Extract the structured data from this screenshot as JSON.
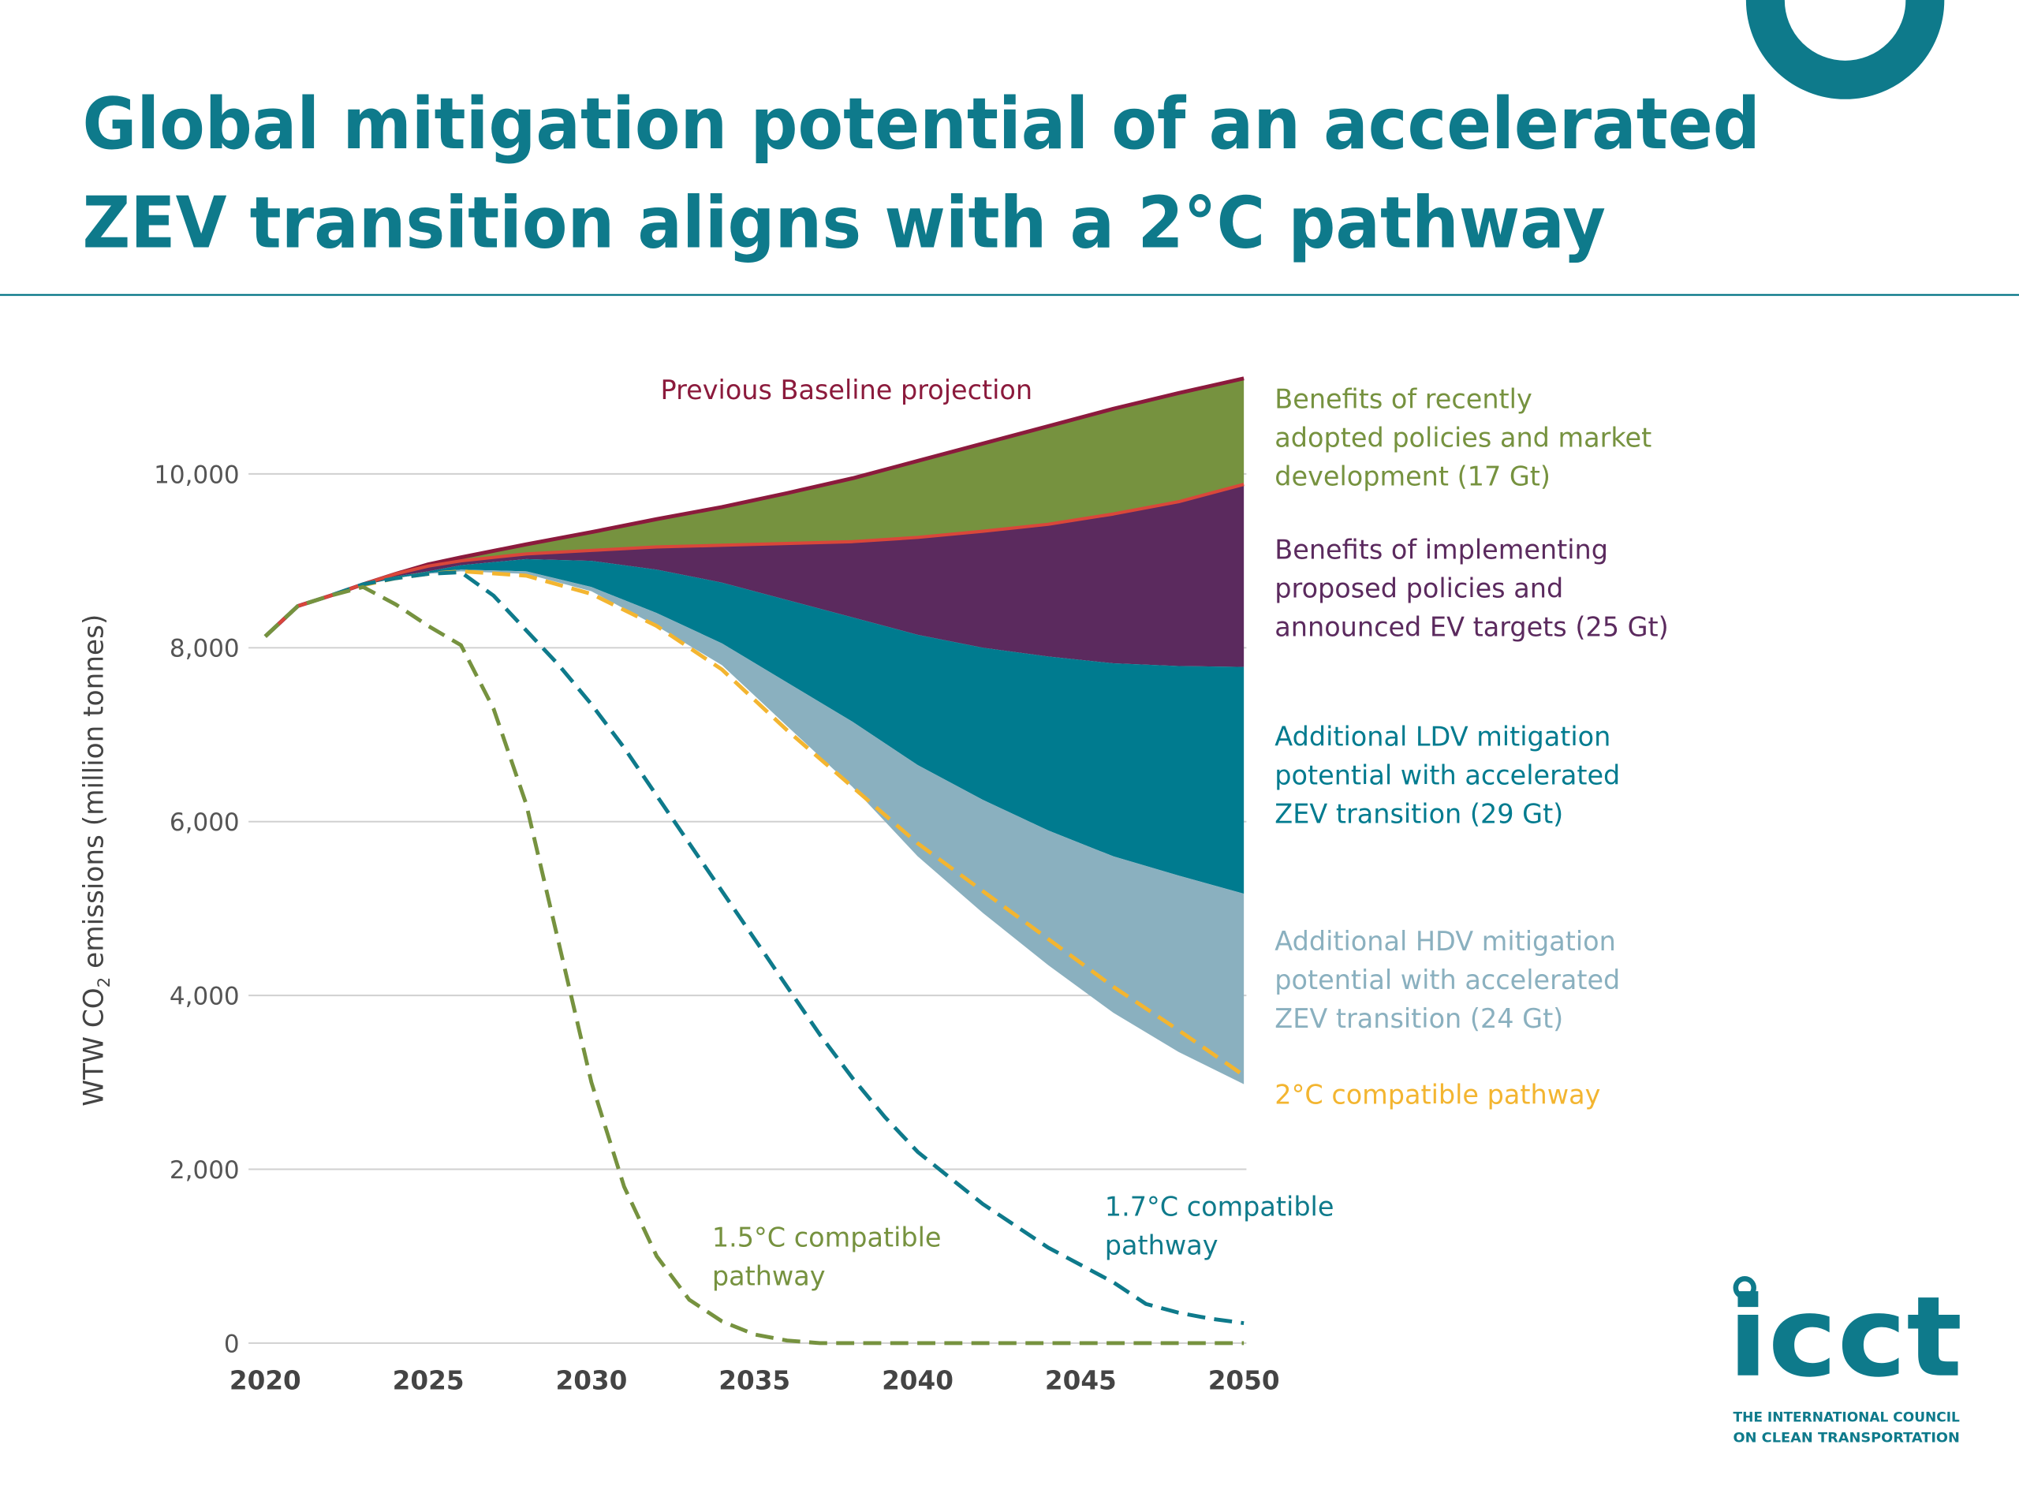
{
  "title_lines": [
    "Global mitigation potential of an accelerated",
    "ZEV transition aligns with a 2°C pathway"
  ],
  "logo": {
    "name": "icct",
    "line1": "THE INTERNATIONAL COUNCIL",
    "line2": "ON CLEAN TRANSPORTATION"
  },
  "colors": {
    "brand": "#0e7a8b",
    "previous_baseline": "#8b1a3c",
    "current_policies_line": "#d9473a",
    "recent_policies": "#76923f",
    "proposed_policies": "#5b2a5e",
    "ldv": "#007b8f",
    "hdv": "#8ab0bf",
    "two_c": "#f3b530",
    "one_seven_c": "#0e7a8b",
    "one_five_c": "#76923f",
    "grid": "#d0d0d0"
  },
  "chart_data": {
    "type": "area",
    "title": "",
    "xlabel": "",
    "ylabel": "WTW CO2 emissions (million tonnes)",
    "ylabel_parts": [
      "WTW CO",
      "2",
      " emissions (million tonnes)"
    ],
    "xlim": [
      2020,
      2050
    ],
    "ylim": [
      0,
      11000
    ],
    "xticks": [
      "2020",
      "2025",
      "2030",
      "2035",
      "2040",
      "2045",
      "2050"
    ],
    "yticks": [
      "0",
      "2,000",
      "4,000",
      "6,000",
      "8,000",
      "10,000"
    ],
    "ytick_values": [
      0,
      2000,
      4000,
      6000,
      8000,
      10000
    ],
    "grid": "horizontal",
    "x": [
      2020,
      2021,
      2022,
      2023,
      2024,
      2025,
      2026,
      2028,
      2030,
      2032,
      2034,
      2036,
      2038,
      2040,
      2042,
      2044,
      2046,
      2048,
      2050
    ],
    "lines": {
      "previous_baseline": [
        8130,
        8480,
        8600,
        8730,
        8850,
        8960,
        9040,
        9190,
        9330,
        9480,
        9620,
        9780,
        9950,
        10150,
        10350,
        10550,
        10750,
        10930,
        11100
      ],
      "current_policies": [
        8130,
        8480,
        8600,
        8730,
        8850,
        8940,
        9000,
        9080,
        9120,
        9160,
        9180,
        9200,
        9220,
        9270,
        9340,
        9420,
        9540,
        9680,
        9880
      ],
      "proposed_policies": [
        8130,
        8480,
        8600,
        8720,
        8820,
        8880,
        8950,
        9020,
        9000,
        8900,
        8750,
        8550,
        8350,
        8150,
        8000,
        7900,
        7820,
        7790,
        7780
      ],
      "accelerated_ldv": [
        8130,
        8480,
        8600,
        8720,
        8800,
        8860,
        8900,
        8880,
        8700,
        8400,
        8050,
        7600,
        7150,
        6650,
        6250,
        5900,
        5600,
        5380,
        5170
      ],
      "accelerated_hdv": [
        8130,
        8480,
        8600,
        8720,
        8800,
        8850,
        8880,
        8850,
        8650,
        8250,
        7800,
        7100,
        6400,
        5600,
        4950,
        4350,
        3800,
        3350,
        2980
      ],
      "two_c": [
        8130,
        8480,
        8600,
        8720,
        8800,
        8850,
        8880,
        8830,
        8620,
        8250,
        7750,
        7050,
        6400,
        5750,
        5200,
        4650,
        4100,
        3600,
        3080
      ]
    },
    "pathways_x": [
      2020,
      2021,
      2022,
      2023,
      2024,
      2025,
      2026,
      2027,
      2028,
      2029,
      2030,
      2031,
      2032,
      2033,
      2034,
      2035,
      2036,
      2037,
      2038,
      2039,
      2040,
      2041,
      2042,
      2043,
      2044,
      2045,
      2046,
      2047,
      2048,
      2049,
      2050
    ],
    "one_seven_c": [
      8130,
      8480,
      8600,
      8730,
      8800,
      8850,
      8870,
      8600,
      8200,
      7800,
      7350,
      6850,
      6300,
      5750,
      5200,
      4650,
      4100,
      3550,
      3050,
      2600,
      2200,
      1900,
      1600,
      1350,
      1100,
      900,
      700,
      450,
      350,
      280,
      230
    ],
    "one_five_c": [
      8130,
      8480,
      8600,
      8700,
      8500,
      8250,
      8030,
      7300,
      6200,
      4600,
      3000,
      1800,
      1000,
      500,
      250,
      100,
      30,
      0,
      0,
      0,
      0,
      0,
      0,
      0,
      0,
      0,
      0,
      0,
      0,
      0,
      0
    ],
    "labels": {
      "previous_baseline": "Previous Baseline projection",
      "recent": [
        "Benefits of recently",
        "adopted policies and market",
        "development (17 Gt)"
      ],
      "proposed": [
        "Benefits of implementing",
        "proposed policies and",
        "announced EV targets (25 Gt)"
      ],
      "ldv": [
        "Additional LDV mitigation",
        "potential with accelerated",
        "ZEV transition (29 Gt)"
      ],
      "hdv": [
        "Additional HDV mitigation",
        "potential with accelerated",
        "ZEV transition (24 Gt)"
      ],
      "two_c": "2°C compatible pathway",
      "one_seven_c": [
        "1.7°C compatible",
        "pathway"
      ],
      "one_five_c": [
        "1.5°C compatible",
        "pathway"
      ]
    }
  }
}
